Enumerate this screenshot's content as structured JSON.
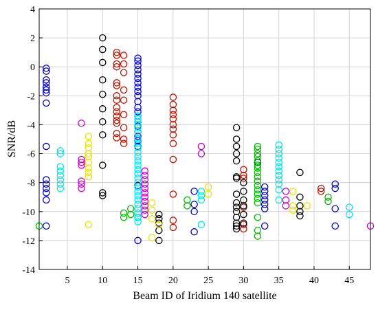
{
  "chart_data": {
    "type": "scatter",
    "title": "",
    "xlabel": "Beam ID of Iridium 140 satellite",
    "ylabel": "SNR/dB",
    "xlim": [
      1,
      48
    ],
    "ylim": [
      -14,
      4
    ],
    "grid": true,
    "x_ticks": [
      5,
      10,
      15,
      20,
      25,
      30,
      35,
      40,
      45
    ],
    "y_ticks": [
      -14,
      -12,
      -10,
      -8,
      -6,
      -4,
      -2,
      0,
      2,
      4
    ],
    "marker": "open-circle",
    "series": [
      {
        "color": "#0000cc",
        "points": [
          [
            2,
            -0.1
          ],
          [
            2,
            -0.3
          ],
          [
            2,
            -0.9
          ],
          [
            2,
            -1.1
          ],
          [
            2,
            -1.4
          ],
          [
            2,
            -1.6
          ],
          [
            2,
            -1.8
          ],
          [
            2,
            -2.5
          ],
          [
            2,
            -5.5
          ],
          [
            2,
            -7.8
          ],
          [
            2,
            -8.1
          ],
          [
            2,
            -8.4
          ],
          [
            2,
            -8.7
          ],
          [
            2,
            -9.2
          ],
          [
            2,
            -11
          ],
          [
            15,
            0.6
          ],
          [
            15,
            0.4
          ],
          [
            15,
            0.1
          ],
          [
            15,
            -0.2
          ],
          [
            15,
            -0.5
          ],
          [
            15,
            -0.8
          ],
          [
            15,
            -1.1
          ],
          [
            15,
            -1.4
          ],
          [
            15,
            -1.7
          ],
          [
            15,
            -2
          ],
          [
            15,
            -2.4
          ],
          [
            15,
            -2.8
          ],
          [
            15,
            -3.1
          ],
          [
            15,
            -3.4
          ],
          [
            15,
            -3.8
          ],
          [
            15,
            -4.1
          ],
          [
            15,
            -4.5
          ],
          [
            15,
            -4.8
          ],
          [
            15,
            -5.1
          ],
          [
            15,
            -5.5
          ],
          [
            15,
            -8.2
          ],
          [
            15,
            -10.4
          ],
          [
            15,
            -12
          ],
          [
            23,
            -8.6
          ],
          [
            23,
            -9.5
          ],
          [
            23,
            -10
          ],
          [
            23,
            -11.4
          ],
          [
            32,
            -6.6
          ],
          [
            33,
            -8.3
          ],
          [
            33,
            -8.6
          ],
          [
            33,
            -8.9
          ],
          [
            33,
            -9.2
          ],
          [
            33,
            -9.5
          ],
          [
            33,
            -9.8
          ],
          [
            33,
            -11
          ],
          [
            43,
            -8.1
          ],
          [
            43,
            -8.4
          ],
          [
            43,
            -9.8
          ],
          [
            43,
            -11
          ]
        ]
      },
      {
        "color": "#00e5ee",
        "points": [
          [
            4,
            -5.8
          ],
          [
            4,
            -6
          ],
          [
            4,
            -6.9
          ],
          [
            4,
            -7.2
          ],
          [
            4,
            -7.5
          ],
          [
            4,
            -7.8
          ],
          [
            4,
            -8.1
          ],
          [
            4,
            -8.4
          ],
          [
            15,
            -3.4
          ],
          [
            15,
            -3.6
          ],
          [
            15,
            -3.8
          ],
          [
            15,
            -4
          ],
          [
            15,
            -4.2
          ],
          [
            15,
            -4.5
          ],
          [
            15,
            -5
          ],
          [
            15,
            -5.3
          ],
          [
            15,
            -5.6
          ],
          [
            15,
            -5.9
          ],
          [
            15,
            -6.2
          ],
          [
            15,
            -6.5
          ],
          [
            15,
            -6.8
          ],
          [
            15,
            -7.1
          ],
          [
            15,
            -7.4
          ],
          [
            15,
            -7.7
          ],
          [
            15,
            -8
          ],
          [
            15,
            -8.3
          ],
          [
            15,
            -8.6
          ],
          [
            15,
            -8.9
          ],
          [
            15,
            -9.2
          ],
          [
            15,
            -9.5
          ],
          [
            15,
            -9.8
          ],
          [
            15,
            -10.1
          ],
          [
            15,
            -10.4
          ],
          [
            15,
            -10.7
          ],
          [
            24,
            -8.6
          ],
          [
            24,
            -8.9
          ],
          [
            24,
            -9.2
          ],
          [
            24,
            -10.9
          ],
          [
            35,
            -5.4
          ],
          [
            35,
            -5.7
          ],
          [
            35,
            -6
          ],
          [
            35,
            -6.3
          ],
          [
            35,
            -6.6
          ],
          [
            35,
            -6.9
          ],
          [
            35,
            -7.2
          ],
          [
            35,
            -7.5
          ],
          [
            35,
            -7.8
          ],
          [
            35,
            -8.1
          ],
          [
            35,
            -8.5
          ],
          [
            35,
            -9.2
          ],
          [
            45,
            -9.7
          ],
          [
            45,
            -10.2
          ]
        ]
      },
      {
        "color": "#bb1100",
        "points": [
          [
            12,
            1
          ],
          [
            12,
            0.8
          ],
          [
            12,
            0.2
          ],
          [
            12,
            0
          ],
          [
            12,
            -1.1
          ],
          [
            12,
            -1.3
          ],
          [
            12,
            -2
          ],
          [
            12,
            -2.3
          ],
          [
            12,
            -2.8
          ],
          [
            12,
            -3.1
          ],
          [
            12,
            -3.4
          ],
          [
            12,
            -3.7
          ],
          [
            12,
            -3.9
          ],
          [
            12,
            -4.6
          ],
          [
            12,
            -4.9
          ],
          [
            13,
            0.8
          ],
          [
            13,
            0.2
          ],
          [
            13,
            -0.4
          ],
          [
            13,
            -1.6
          ],
          [
            13,
            -2.3
          ],
          [
            13,
            -3.3
          ],
          [
            13,
            -4.2
          ],
          [
            13,
            -5
          ],
          [
            13,
            -5.3
          ],
          [
            20,
            -2.1
          ],
          [
            20,
            -2.6
          ],
          [
            20,
            -3
          ],
          [
            20,
            -3.3
          ],
          [
            20,
            -3.6
          ],
          [
            20,
            -4
          ],
          [
            20,
            -4.3
          ],
          [
            20,
            -4.7
          ],
          [
            20,
            -5.3
          ],
          [
            20,
            -6.4
          ],
          [
            20,
            -8.8
          ],
          [
            20,
            -10.6
          ],
          [
            20,
            -11.1
          ],
          [
            30,
            -7.1
          ],
          [
            30,
            -7.5
          ],
          [
            30,
            -7.7
          ],
          [
            30,
            -9.7
          ],
          [
            30,
            -10.9
          ],
          [
            30,
            -11.2
          ],
          [
            41,
            -8.4
          ],
          [
            41,
            -8.6
          ]
        ]
      },
      {
        "color": "#000000",
        "points": [
          [
            10,
            2
          ],
          [
            10,
            1.2
          ],
          [
            10,
            0.3
          ],
          [
            10,
            -0.9
          ],
          [
            10,
            -1.9
          ],
          [
            10,
            -2.9
          ],
          [
            10,
            -3.8
          ],
          [
            10,
            -4.7
          ],
          [
            10,
            -6.8
          ],
          [
            10,
            -8.7
          ],
          [
            10,
            -8.9
          ],
          [
            18,
            -10.2
          ],
          [
            18,
            -10.5
          ],
          [
            18,
            -10.8
          ],
          [
            18,
            -11.3
          ],
          [
            18,
            -12
          ],
          [
            29,
            -4.2
          ],
          [
            29,
            -5
          ],
          [
            29,
            -5.5
          ],
          [
            29,
            -6
          ],
          [
            29,
            -6.5
          ],
          [
            29,
            -7.6
          ],
          [
            29,
            -7.7
          ],
          [
            29,
            -8.8
          ],
          [
            29,
            -9.4
          ],
          [
            29,
            -9.7
          ],
          [
            29,
            -10
          ],
          [
            29,
            -10.4
          ],
          [
            29,
            -10.8
          ],
          [
            29,
            -11
          ],
          [
            29,
            -11.2
          ],
          [
            30,
            -8
          ],
          [
            30,
            -8.6
          ],
          [
            30,
            -9.2
          ],
          [
            30,
            -9.6
          ],
          [
            30,
            -10.2
          ],
          [
            30,
            -10.8
          ],
          [
            38,
            -7.3
          ],
          [
            38,
            -9
          ],
          [
            38,
            -9.6
          ],
          [
            38,
            -10
          ],
          [
            38,
            -10.3
          ]
        ]
      },
      {
        "color": "#e5e500",
        "points": [
          [
            8,
            -4.8
          ],
          [
            8,
            -5.3
          ],
          [
            8,
            -5.6
          ],
          [
            8,
            -6
          ],
          [
            8,
            -6.2
          ],
          [
            8,
            -6.6
          ],
          [
            8,
            -7
          ],
          [
            8,
            -7.3
          ],
          [
            8,
            -7.6
          ],
          [
            8,
            -10.9
          ],
          [
            17,
            -9.4
          ],
          [
            17,
            -9.9
          ],
          [
            17,
            -10.5
          ],
          [
            17,
            -11.8
          ],
          [
            18,
            -10.9
          ],
          [
            25,
            -8.3
          ],
          [
            25,
            -8.8
          ],
          [
            37,
            -8.6
          ],
          [
            37,
            -9.6
          ],
          [
            37,
            -9.9
          ],
          [
            39,
            -9.6
          ]
        ]
      },
      {
        "color": "#cc00cc",
        "points": [
          [
            7,
            -3.9
          ],
          [
            7,
            -6.4
          ],
          [
            7,
            -6.6
          ],
          [
            7,
            -6.8
          ],
          [
            7,
            -7.9
          ],
          [
            7,
            -8.1
          ],
          [
            7,
            -8.4
          ],
          [
            16,
            -7.2
          ],
          [
            16,
            -7.5
          ],
          [
            16,
            -7.8
          ],
          [
            16,
            -8.1
          ],
          [
            16,
            -8.4
          ],
          [
            16,
            -8.7
          ],
          [
            16,
            -9
          ],
          [
            16,
            -9.3
          ],
          [
            16,
            -9.6
          ],
          [
            16,
            -9.9
          ],
          [
            16,
            -10.2
          ],
          [
            24,
            -5.5
          ],
          [
            24,
            -6
          ],
          [
            36,
            -8.6
          ],
          [
            36,
            -9.2
          ],
          [
            36,
            -9.6
          ],
          [
            48,
            -11
          ]
        ]
      },
      {
        "color": "#00bb00",
        "points": [
          [
            1,
            -11
          ],
          [
            13,
            -10.1
          ],
          [
            13,
            -10.4
          ],
          [
            14,
            -9.8
          ],
          [
            14,
            -10.2
          ],
          [
            22,
            -9.2
          ],
          [
            22,
            -9.6
          ],
          [
            32,
            -5.5
          ],
          [
            32,
            -5.7
          ],
          [
            32,
            -6
          ],
          [
            32,
            -6.2
          ],
          [
            32,
            -6.5
          ],
          [
            32,
            -6.8
          ],
          [
            32,
            -7
          ],
          [
            32,
            -7.3
          ],
          [
            32,
            -7.6
          ],
          [
            32,
            -7.9
          ],
          [
            32,
            -8.2
          ],
          [
            32,
            -8.5
          ],
          [
            32,
            -8.8
          ],
          [
            32,
            -9.1
          ],
          [
            32,
            -9.4
          ],
          [
            32,
            -10.4
          ],
          [
            32,
            -11.3
          ],
          [
            32,
            -11.7
          ],
          [
            42,
            -9
          ],
          [
            42,
            -9.3
          ]
        ]
      }
    ]
  }
}
